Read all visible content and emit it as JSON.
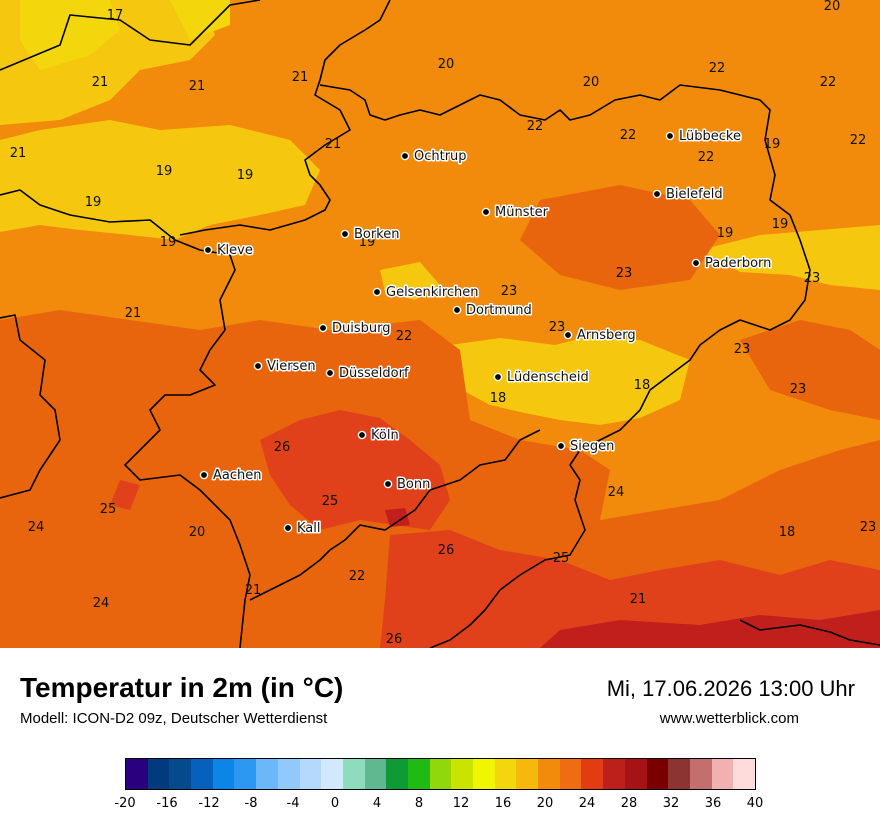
{
  "title": "Temperatur in 2m (in °C)",
  "model": "Modell: ICON-D2 09z, Deutscher Wetterdienst",
  "datetime": "Mi, 17.06.2026 13:00 Uhr",
  "website": "www.wetterblick.com",
  "colors": {
    "base": "#f28a0c",
    "yellow": "#f5c80f",
    "bright_yellow": "#f3d70c",
    "dark_orange": "#e8650e",
    "red": "#e0411a",
    "dark_red": "#c01f1c"
  },
  "cities": [
    {
      "name": "Lübbecke"
    },
    {
      "name": "Ochtrup"
    },
    {
      "name": "Bielefeld"
    },
    {
      "name": "Münster"
    },
    {
      "name": "Borken"
    },
    {
      "name": "Kleve"
    },
    {
      "name": "Paderborn"
    },
    {
      "name": "Gelsenkirchen"
    },
    {
      "name": "Dortmund"
    },
    {
      "name": "Duisburg"
    },
    {
      "name": "Arnsberg"
    },
    {
      "name": "Viersen"
    },
    {
      "name": "Düsseldorf"
    },
    {
      "name": "Lüdenscheid"
    },
    {
      "name": "Köln"
    },
    {
      "name": "Siegen"
    },
    {
      "name": "Aachen"
    },
    {
      "name": "Bonn"
    },
    {
      "name": "Kall"
    }
  ],
  "temperature_labels": [
    "17",
    "20",
    "21",
    "21",
    "21",
    "20",
    "20",
    "22",
    "22",
    "22",
    "21",
    "22",
    "22",
    "19",
    "22",
    "21",
    "19",
    "19",
    "19",
    "19",
    "19",
    "19",
    "19",
    "23",
    "23",
    "21",
    "23",
    "22",
    "23",
    "23",
    "18",
    "18",
    "23",
    "26",
    "25",
    "24",
    "25",
    "20",
    "24",
    "26",
    "22",
    "21",
    "25",
    "24",
    "21",
    "26",
    "18",
    "23"
  ],
  "legend": {
    "tick_labels": [
      "-20",
      "-16",
      "-12",
      "-8",
      "-4",
      "0",
      "4",
      "8",
      "12",
      "16",
      "20",
      "24",
      "28",
      "32",
      "36",
      "40"
    ],
    "colors": [
      "#2a007e",
      "#023a7e",
      "#064a8e",
      "#0760bc",
      "#0b85e6",
      "#2d98f2",
      "#6cb7f9",
      "#92c9fb",
      "#b5d9fc",
      "#d3e8fd",
      "#8fdbbe",
      "#5fb88f",
      "#0e9b35",
      "#1fbb13",
      "#90d80c",
      "#c8e400",
      "#eff600",
      "#f3d70c",
      "#f5b80b",
      "#f28a0c",
      "#ef6c12",
      "#e33c13",
      "#bd1f1a",
      "#a51317",
      "#7a0000",
      "#8c3431",
      "#c26f6e",
      "#f0b1b0",
      "#ffdcdc"
    ]
  }
}
